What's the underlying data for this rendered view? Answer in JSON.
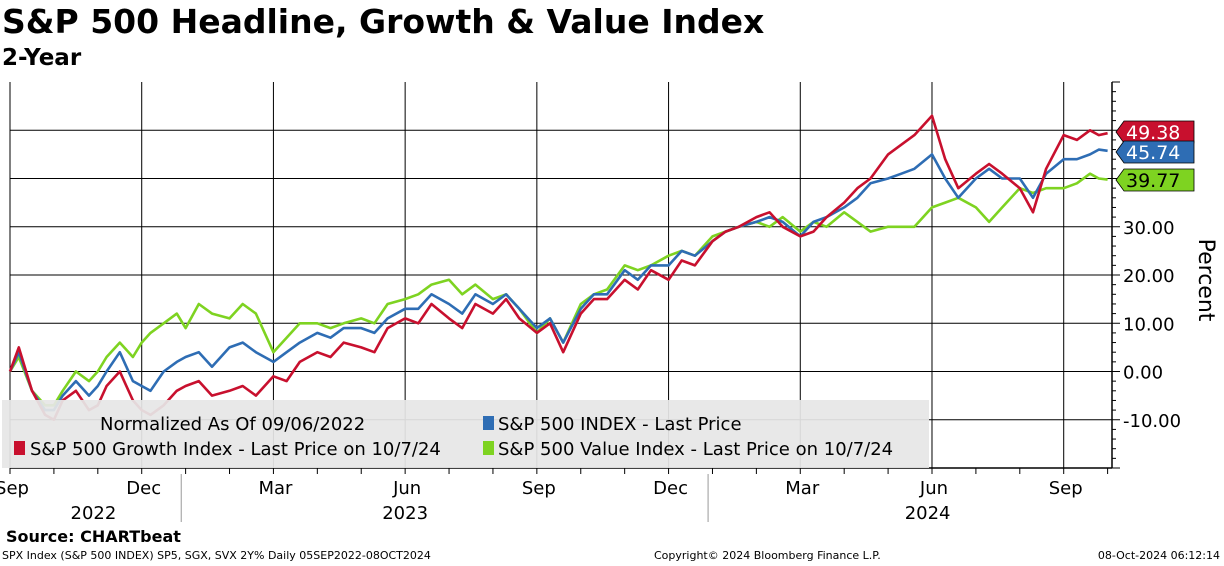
{
  "header": {
    "title": "S&P 500 Headline, Growth & Value Index",
    "subtitle": "2-Year"
  },
  "footer": {
    "source": "Source: CHARTbeat",
    "left": "SPX Index (S&P 500 INDEX) SP5, SGX, SVX 2Y% Daily 05SEP2022-08OCT2024",
    "copyright": "Copyright© 2024 Bloomberg Finance L.P.",
    "timestamp": "08-Oct-2024 06:12:14"
  },
  "colors": {
    "growth": "#c8102e",
    "index": "#2e6db4",
    "value": "#7ed321",
    "grid": "#000000",
    "legend_bg": "#e6e6e6"
  },
  "chart_data": {
    "type": "line",
    "title": "S&P 500 Headline, Growth & Value Index",
    "subtitle": "2-Year",
    "ylabel": "Percent",
    "ylim": [
      -20,
      60
    ],
    "y_ticks": [
      -10,
      0,
      10,
      20,
      30
    ],
    "y_tick_labels": [
      "-10.00",
      "0.00",
      "10.00",
      "20.00",
      "30.00"
    ],
    "xlim": [
      0,
      25.1
    ],
    "x_month_ticks": [
      {
        "x": 0,
        "label": "Sep"
      },
      {
        "x": 3,
        "label": "Dec"
      },
      {
        "x": 6,
        "label": "Mar"
      },
      {
        "x": 9,
        "label": "Jun"
      },
      {
        "x": 12,
        "label": "Sep"
      },
      {
        "x": 15,
        "label": "Dec"
      },
      {
        "x": 18,
        "label": "Mar"
      },
      {
        "x": 21,
        "label": "Jun"
      },
      {
        "x": 24,
        "label": "Sep"
      }
    ],
    "x_year_labels": [
      {
        "x": 1.9,
        "label": "2022"
      },
      {
        "x": 9.0,
        "label": "2023"
      },
      {
        "x": 20.9,
        "label": "2024"
      }
    ],
    "x_year_dividers": [
      3.9,
      15.9
    ],
    "x_grid": [
      0,
      3,
      6,
      9,
      12,
      15,
      18,
      21,
      24
    ],
    "legend": {
      "header": "Normalized As Of 09/06/2022",
      "items": [
        {
          "key": "index",
          "label": "S&P 500 INDEX - Last Price"
        },
        {
          "key": "growth",
          "label": "S&P 500 Growth Index - Last Price on 10/7/24"
        },
        {
          "key": "value",
          "label": "S&P 500 Value Index - Last Price on 10/7/24"
        }
      ]
    },
    "series": [
      {
        "name": "S&P 500 Growth Index",
        "key": "growth",
        "last_value": 49.38,
        "last_label": "49.38",
        "x": [
          0,
          0.2,
          0.5,
          0.8,
          1.0,
          1.2,
          1.5,
          1.8,
          2.0,
          2.2,
          2.5,
          2.8,
          3.0,
          3.2,
          3.5,
          3.8,
          4.0,
          4.3,
          4.6,
          5.0,
          5.3,
          5.6,
          6.0,
          6.3,
          6.6,
          7.0,
          7.3,
          7.6,
          8.0,
          8.3,
          8.6,
          9.0,
          9.3,
          9.6,
          10.0,
          10.3,
          10.6,
          11.0,
          11.3,
          11.6,
          12.0,
          12.3,
          12.6,
          13.0,
          13.3,
          13.6,
          14.0,
          14.3,
          14.6,
          15.0,
          15.3,
          15.6,
          16.0,
          16.3,
          16.6,
          17.0,
          17.3,
          17.6,
          18.0,
          18.3,
          18.6,
          19.0,
          19.3,
          19.6,
          20.0,
          20.3,
          20.6,
          21.0,
          21.3,
          21.6,
          22.0,
          22.3,
          22.6,
          23.0,
          23.3,
          23.6,
          24.0,
          24.3,
          24.6,
          24.8,
          25.0
        ],
        "values": [
          0,
          5,
          -4,
          -9,
          -10,
          -6,
          -4,
          -8,
          -7,
          -3,
          0,
          -6,
          -8,
          -9,
          -7,
          -4,
          -3,
          -2,
          -5,
          -4,
          -3,
          -5,
          -1,
          -2,
          2,
          4,
          3,
          6,
          5,
          4,
          9,
          11,
          10,
          14,
          11,
          9,
          14,
          12,
          15,
          11,
          8,
          10,
          4,
          12,
          15,
          15,
          19,
          17,
          21,
          19,
          23,
          22,
          27,
          29,
          30,
          32,
          33,
          30,
          28,
          29,
          32,
          35,
          38,
          40,
          45,
          47,
          49,
          53,
          44,
          38,
          41,
          43,
          41,
          38,
          33,
          42,
          49,
          48,
          50,
          49,
          49.38
        ]
      },
      {
        "name": "S&P 500 INDEX",
        "key": "index",
        "last_value": 45.74,
        "last_label": "45.74",
        "x": [
          0,
          0.2,
          0.5,
          0.8,
          1.0,
          1.2,
          1.5,
          1.8,
          2.0,
          2.2,
          2.5,
          2.8,
          3.0,
          3.2,
          3.5,
          3.8,
          4.0,
          4.3,
          4.6,
          5.0,
          5.3,
          5.6,
          6.0,
          6.3,
          6.6,
          7.0,
          7.3,
          7.6,
          8.0,
          8.3,
          8.6,
          9.0,
          9.3,
          9.6,
          10.0,
          10.3,
          10.6,
          11.0,
          11.3,
          11.6,
          12.0,
          12.3,
          12.6,
          13.0,
          13.3,
          13.6,
          14.0,
          14.3,
          14.6,
          15.0,
          15.3,
          15.6,
          16.0,
          16.3,
          16.6,
          17.0,
          17.3,
          17.6,
          18.0,
          18.3,
          18.6,
          19.0,
          19.3,
          19.6,
          20.0,
          20.3,
          20.6,
          21.0,
          21.3,
          21.6,
          22.0,
          22.3,
          22.6,
          23.0,
          23.3,
          23.6,
          24.0,
          24.3,
          24.6,
          24.8,
          25.0
        ],
        "values": [
          0,
          4,
          -4,
          -8,
          -8,
          -5,
          -2,
          -5,
          -3,
          0,
          4,
          -2,
          -3,
          -4,
          0,
          2,
          3,
          4,
          1,
          5,
          6,
          4,
          2,
          4,
          6,
          8,
          7,
          9,
          9,
          8,
          11,
          13,
          13,
          16,
          14,
          12,
          16,
          14,
          16,
          13,
          9,
          11,
          6,
          13,
          16,
          16,
          21,
          19,
          22,
          22,
          25,
          24,
          27,
          29,
          30,
          31,
          32,
          31,
          28,
          31,
          32,
          34,
          36,
          39,
          40,
          41,
          42,
          45,
          40,
          36,
          40,
          42,
          40,
          40,
          36,
          41,
          44,
          44,
          45,
          46,
          45.74
        ]
      },
      {
        "name": "S&P 500 Value Index",
        "key": "value",
        "last_value": 39.77,
        "last_label": "39.77",
        "x": [
          0,
          0.2,
          0.5,
          0.8,
          1.0,
          1.2,
          1.5,
          1.8,
          2.0,
          2.2,
          2.5,
          2.8,
          3.0,
          3.2,
          3.5,
          3.8,
          4.0,
          4.3,
          4.6,
          5.0,
          5.3,
          5.6,
          6.0,
          6.3,
          6.6,
          7.0,
          7.3,
          7.6,
          8.0,
          8.3,
          8.6,
          9.0,
          9.3,
          9.6,
          10.0,
          10.3,
          10.6,
          11.0,
          11.3,
          11.6,
          12.0,
          12.3,
          12.6,
          13.0,
          13.3,
          13.6,
          14.0,
          14.3,
          14.6,
          15.0,
          15.3,
          15.6,
          16.0,
          16.3,
          16.6,
          17.0,
          17.3,
          17.6,
          18.0,
          18.3,
          18.6,
          19.0,
          19.3,
          19.6,
          20.0,
          20.3,
          20.6,
          21.0,
          21.3,
          21.6,
          22.0,
          22.3,
          22.6,
          23.0,
          23.3,
          23.6,
          24.0,
          24.3,
          24.6,
          24.8,
          25.0
        ],
        "values": [
          0,
          3,
          -4,
          -7,
          -7,
          -4,
          0,
          -2,
          0,
          3,
          6,
          3,
          6,
          8,
          10,
          12,
          9,
          14,
          12,
          11,
          14,
          12,
          4,
          7,
          10,
          10,
          9,
          10,
          11,
          10,
          14,
          15,
          16,
          18,
          19,
          16,
          18,
          15,
          16,
          13,
          8,
          11,
          6,
          14,
          16,
          17,
          22,
          21,
          22,
          24,
          25,
          24,
          28,
          29,
          30,
          31,
          30,
          32,
          29,
          31,
          30,
          33,
          31,
          29,
          30,
          30,
          30,
          34,
          35,
          36,
          34,
          31,
          34,
          38,
          37,
          38,
          38,
          39,
          41,
          40,
          39.77
        ]
      }
    ]
  }
}
